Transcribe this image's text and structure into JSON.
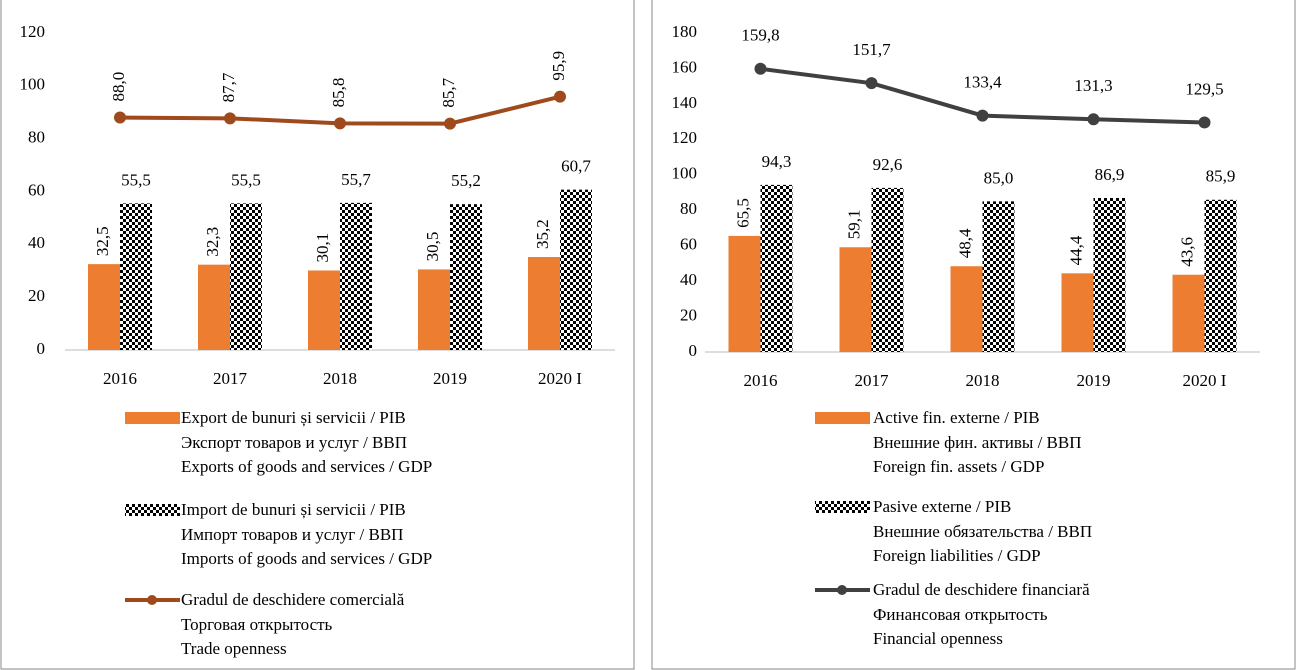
{
  "chart_data": [
    {
      "type": "bar",
      "categories": [
        "2016",
        "2017",
        "2018",
        "2019",
        "2020 I"
      ],
      "ylim": [
        0,
        120
      ],
      "yticks": [
        0,
        20,
        40,
        60,
        80,
        100,
        120
      ],
      "series": [
        {
          "name": "Export de bunuri și servicii / PIB\nЭкспорт товаров и услуг / ВВП\nExports of goods and services / GDP",
          "color": "#ed7d31",
          "values": [
            32.5,
            32.3,
            30.1,
            30.5,
            35.2
          ],
          "value_labels": [
            "32,5",
            "32,3",
            "30,1",
            "30,5",
            "35,2"
          ]
        },
        {
          "name": "Import de bunuri și servicii / PIB\nИмпорт товаров и услуг / ВВП\nImports of goods and services / GDP",
          "color": "#000000",
          "pattern": "checkered",
          "values": [
            55.5,
            55.5,
            55.7,
            55.2,
            60.7
          ],
          "value_labels": [
            "55,5",
            "55,5",
            "55,7",
            "55,2",
            "60,7"
          ]
        },
        {
          "name": "Gradul de deschidere comercială\nТорговая открытость\nTrade openness",
          "type": "line",
          "color": "#9e4a1c",
          "values": [
            88.0,
            87.7,
            85.8,
            85.7,
            95.9
          ],
          "value_labels": [
            "88,0",
            "87,7",
            "85,8",
            "85,7",
            "95,9"
          ]
        }
      ]
    },
    {
      "type": "bar",
      "categories": [
        "2016",
        "2017",
        "2018",
        "2019",
        "2020 I"
      ],
      "ylim": [
        0,
        180
      ],
      "yticks": [
        0,
        20,
        40,
        60,
        80,
        100,
        120,
        140,
        160,
        180
      ],
      "series": [
        {
          "name": "Active fin. externe / PIB\nВнешние фин. активы / ВВП\nForeign fin. assets / GDP",
          "color": "#ed7d31",
          "values": [
            65.5,
            59.1,
            48.4,
            44.4,
            43.6
          ],
          "value_labels": [
            "65,5",
            "59,1",
            "48,4",
            "44,4",
            "43,6"
          ]
        },
        {
          "name": "Pasive externe / PIB\nВнешние обязательства / ВВП\nForeign liabilities / GDP",
          "color": "#000000",
          "pattern": "checkered",
          "values": [
            94.3,
            92.6,
            85.0,
            86.9,
            85.9
          ],
          "value_labels": [
            "94,3",
            "92,6",
            "85,0",
            "86,9",
            "85,9"
          ]
        },
        {
          "name": "Gradul de deschidere financiară\nФинансовая открытость\nFinancial openness",
          "type": "line",
          "color": "#404040",
          "values": [
            159.8,
            151.7,
            133.4,
            131.3,
            129.5
          ],
          "value_labels": [
            "159,8",
            "151,7",
            "133,4",
            "131,3",
            "129,5"
          ]
        }
      ]
    }
  ]
}
